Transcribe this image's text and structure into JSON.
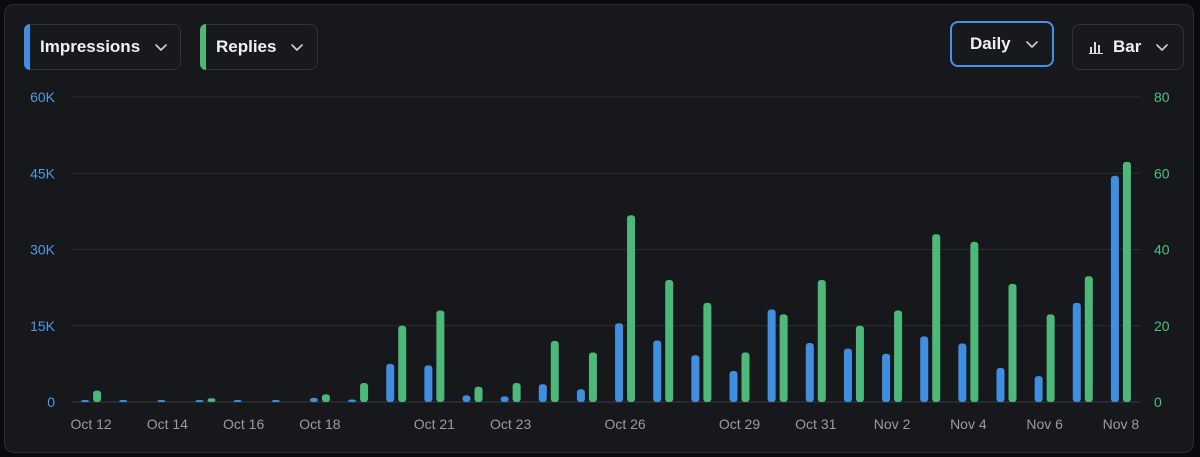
{
  "controls": {
    "metric_1": {
      "label": "Impressions",
      "color": "#3f8ee0"
    },
    "metric_2": {
      "label": "Replies",
      "color": "#4cb87a"
    },
    "interval": "Daily",
    "chart_type": "Bar",
    "icons": [
      "chevron-down-icon",
      "bar-chart-icon"
    ]
  },
  "chart_data": {
    "type": "bar",
    "categories": [
      "Oct 12",
      "Oct 13",
      "Oct 14",
      "Oct 15",
      "Oct 16",
      "Oct 17",
      "Oct 18",
      "Oct 19",
      "Oct 20",
      "Oct 21",
      "Oct 22",
      "Oct 23",
      "Oct 24",
      "Oct 25",
      "Oct 26",
      "Oct 27",
      "Oct 28",
      "Oct 29",
      "Oct 30",
      "Oct 31",
      "Nov 1",
      "Nov 2",
      "Nov 3",
      "Nov 4",
      "Nov 5",
      "Nov 6",
      "Nov 7",
      "Nov 8"
    ],
    "x_tick_labels": [
      "Oct 12",
      "Oct 14",
      "Oct 16",
      "Oct 18",
      "Oct 21",
      "Oct 23",
      "Oct 26",
      "Oct 29",
      "Oct 31",
      "Nov 2",
      "Nov 4",
      "Nov 6",
      "Nov 8"
    ],
    "series": [
      {
        "name": "Impressions",
        "axis": "left",
        "color": "#3f8ee0",
        "values": [
          150,
          50,
          100,
          120,
          80,
          80,
          800,
          500,
          7500,
          7200,
          1300,
          1100,
          3500,
          2500,
          15500,
          12100,
          9200,
          6100,
          18200,
          11600,
          10500,
          9500,
          12900,
          11500,
          6700,
          5100,
          19500,
          44500
        ]
      },
      {
        "name": "Replies",
        "axis": "right",
        "color": "#4cb87a",
        "values": [
          3,
          0,
          0,
          1,
          0,
          0,
          2,
          5,
          20,
          24,
          4,
          5,
          16,
          13,
          49,
          32,
          26,
          13,
          23,
          32,
          20,
          24,
          44,
          42,
          31,
          23,
          33,
          63
        ]
      }
    ],
    "y_left": {
      "ylim": [
        0,
        60000
      ],
      "ticks": [
        "0",
        "15K",
        "30K",
        "45K",
        "60K"
      ],
      "color": "#4d9be6"
    },
    "y_right": {
      "ylim": [
        0,
        80
      ],
      "ticks": [
        "0",
        "20",
        "40",
        "60",
        "80"
      ],
      "color": "#4cc080"
    },
    "grid": true,
    "legend": "top-left"
  }
}
